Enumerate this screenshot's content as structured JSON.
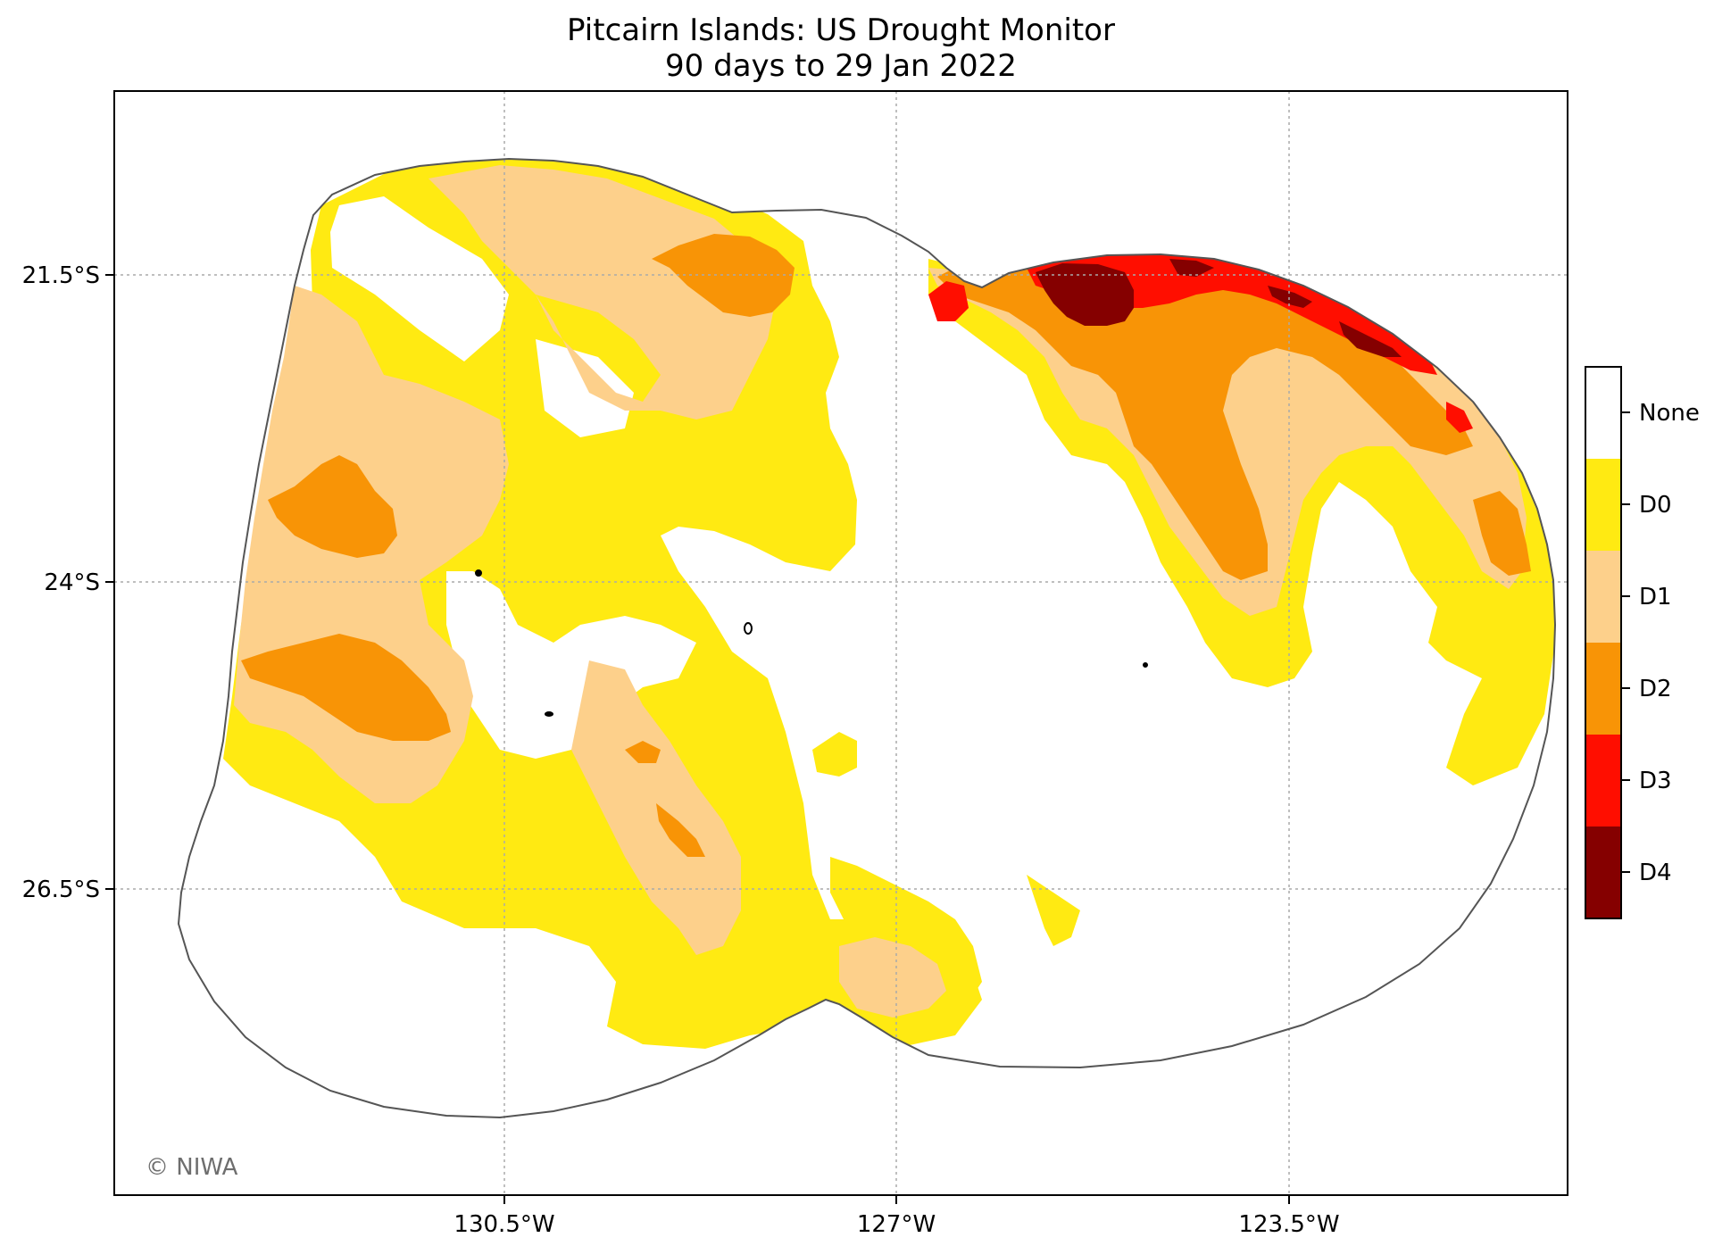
{
  "title": "Pitcairn Islands: US Drought Monitor",
  "subtitle": "90 days to 29 Jan 2022",
  "credit": "© NIWA",
  "axes": {
    "x_ticks": [
      "130.5°W",
      "127°W",
      "123.5°W"
    ],
    "y_ticks": [
      "21.5°S",
      "24°S",
      "26.5°S"
    ],
    "grid": "dotted"
  },
  "legend": {
    "placement": "right",
    "categories": [
      {
        "label": "None",
        "color": "#ffffff"
      },
      {
        "label": "D0",
        "color": "#ffea12"
      },
      {
        "label": "D1",
        "color": "#fdd08b"
      },
      {
        "label": "D2",
        "color": "#f89406"
      },
      {
        "label": "D3",
        "color": "#ff0e00"
      },
      {
        "label": "D4",
        "color": "#850000"
      }
    ]
  },
  "colors": {
    "none": "#ffffff",
    "d0": "#ffea12",
    "d1": "#fdd08b",
    "d2": "#f89406",
    "d3": "#ff0e00",
    "d4": "#850000",
    "eez_outline": "#555555",
    "grid": "#aaaaaa"
  }
}
